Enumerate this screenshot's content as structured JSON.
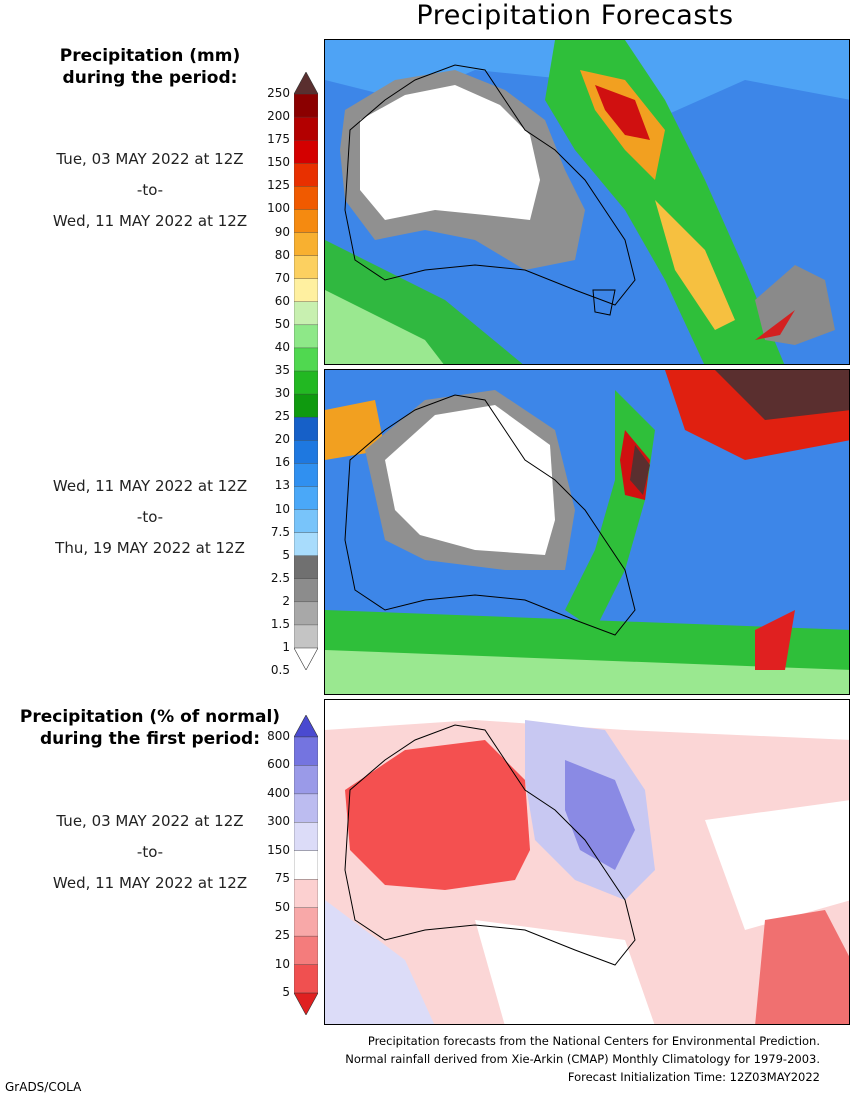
{
  "title": "Precipitation Forecasts",
  "amount_section": {
    "heading_line1": "Precipitation (mm)",
    "heading_line2": "during the period:",
    "period1": {
      "start": "Tue, 03 MAY 2022 at 12Z",
      "sep": "-to-",
      "end": "Wed, 11 MAY 2022 at 12Z"
    },
    "period2": {
      "start": "Wed, 11 MAY 2022 at 12Z",
      "sep": "-to-",
      "end": "Thu, 19 MAY 2022 at 12Z"
    },
    "colorbar": {
      "labels": [
        "250",
        "200",
        "175",
        "150",
        "125",
        "100",
        "90",
        "80",
        "70",
        "60",
        "50",
        "40",
        "35",
        "30",
        "25",
        "20",
        "16",
        "13",
        "10",
        "7.5",
        "5",
        "2.5",
        "2",
        "1.5",
        "1",
        "0.5"
      ],
      "colors": [
        "#5a2f2f",
        "#8b0000",
        "#b30000",
        "#d40000",
        "#e83000",
        "#f05a00",
        "#f58a10",
        "#f8b030",
        "#fcd060",
        "#fff0a0",
        "#c8f0b0",
        "#8ee888",
        "#50d850",
        "#22b822",
        "#0f9a0f",
        "#1660c8",
        "#1e78e0",
        "#3090f0",
        "#4aa8f8",
        "#78c4fa",
        "#a8dcfc",
        "#707070",
        "#8c8c8c",
        "#a8a8a8",
        "#c4c4c4",
        "#ffffff"
      ]
    }
  },
  "percent_section": {
    "heading_line1": "Precipitation (% of normal)",
    "heading_line2": "during the first period:",
    "period": {
      "start": "Tue, 03 MAY 2022 at 12Z",
      "sep": "-to-",
      "end": "Wed, 11 MAY 2022 at 12Z"
    },
    "colorbar": {
      "labels": [
        "800",
        "600",
        "400",
        "300",
        "150",
        "75",
        "50",
        "25",
        "10",
        "5"
      ],
      "colors": [
        "#4a4ad0",
        "#7474e0",
        "#9a9ae8",
        "#bcbcf0",
        "#dcdcf8",
        "#ffffff",
        "#fcd0d0",
        "#f8a8a8",
        "#f47c7c",
        "#f05050",
        "#e02020"
      ]
    }
  },
  "footer": {
    "line1": "Precipitation forecasts from the National Centers for Environmental Prediction.",
    "line2": "Normal rainfall derived from Xie-Arkin (CMAP) Monthly Climatology for 1979-2003.",
    "line3": "Forecast Initialization Time: 12Z03MAY2022"
  },
  "credit": "GrADS/COLA"
}
